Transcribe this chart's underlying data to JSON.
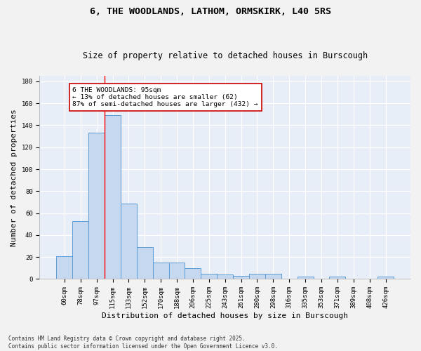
{
  "title_line1": "6, THE WOODLANDS, LATHOM, ORMSKIRK, L40 5RS",
  "title_line2": "Size of property relative to detached houses in Burscough",
  "xlabel": "Distribution of detached houses by size in Burscough",
  "ylabel": "Number of detached properties",
  "categories": [
    "60sqm",
    "78sqm",
    "97sqm",
    "115sqm",
    "133sqm",
    "152sqm",
    "170sqm",
    "188sqm",
    "206sqm",
    "225sqm",
    "243sqm",
    "261sqm",
    "280sqm",
    "298sqm",
    "316sqm",
    "335sqm",
    "353sqm",
    "371sqm",
    "389sqm",
    "408sqm",
    "426sqm"
  ],
  "values": [
    21,
    53,
    133,
    149,
    69,
    29,
    15,
    15,
    10,
    5,
    4,
    3,
    5,
    5,
    0,
    2,
    0,
    2,
    0,
    0,
    2
  ],
  "bar_color": "#c5d8f0",
  "bar_edge_color": "#5b9bd5",
  "red_line_x": 2.5,
  "annotation_text": "6 THE WOODLANDS: 95sqm\n← 13% of detached houses are smaller (62)\n87% of semi-detached houses are larger (432) →",
  "annotation_box_color": "#ffffff",
  "annotation_box_edge": "#cc0000",
  "ylim": [
    0,
    185
  ],
  "yticks": [
    0,
    20,
    40,
    60,
    80,
    100,
    120,
    140,
    160,
    180
  ],
  "background_color": "#e8eef7",
  "grid_color": "#ffffff",
  "fig_background": "#f2f2f2",
  "footer_line1": "Contains HM Land Registry data © Crown copyright and database right 2025.",
  "footer_line2": "Contains public sector information licensed under the Open Government Licence v3.0.",
  "title_fontsize": 9.5,
  "subtitle_fontsize": 8.5,
  "tick_fontsize": 6.5,
  "xlabel_fontsize": 8,
  "ylabel_fontsize": 8,
  "annotation_fontsize": 6.8,
  "footer_fontsize": 5.5
}
